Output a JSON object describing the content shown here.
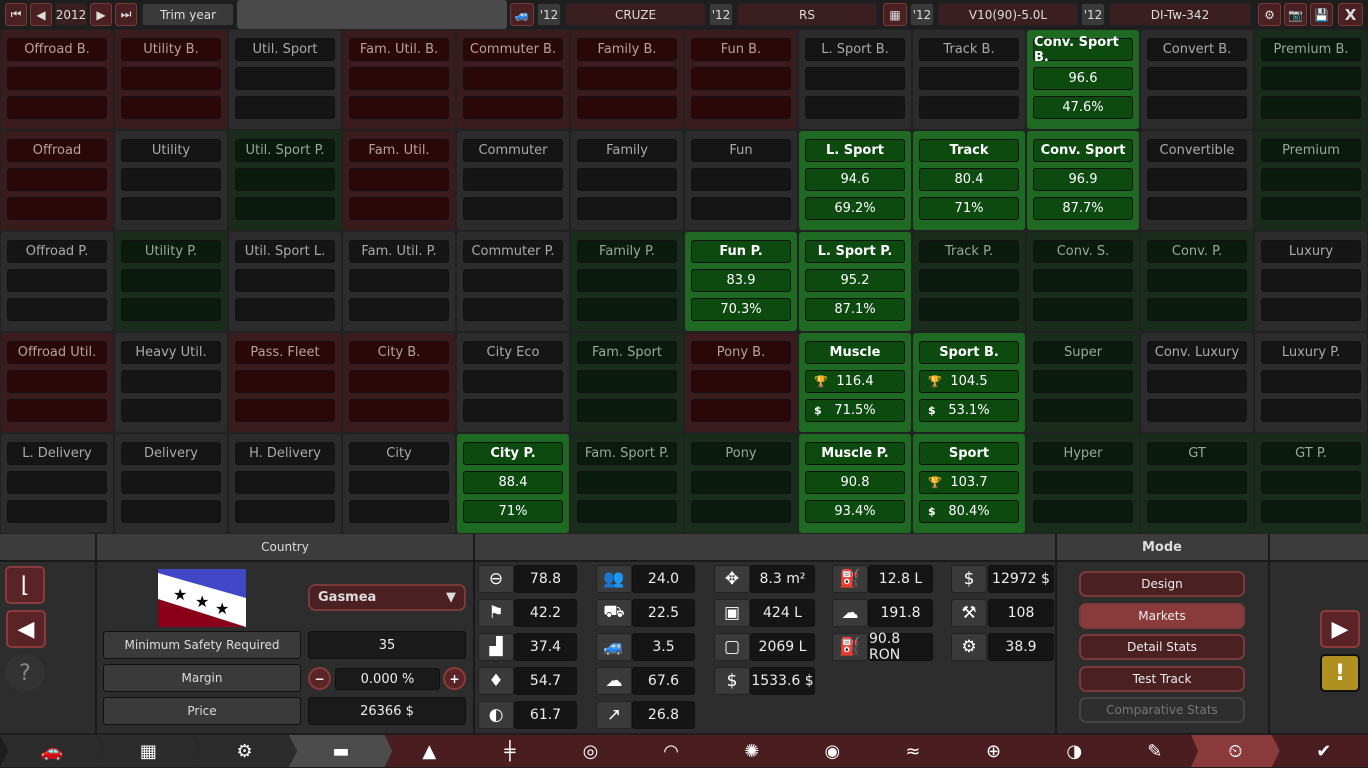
{
  "topbar": {
    "year": "2012",
    "trim_year_label": "Trim year",
    "model_year": "'12",
    "model_name": "CRUZE",
    "trim_year": "'12",
    "trim_name": "RS",
    "engine_year": "'12",
    "engine_name": "V10(90)-5.0L",
    "variant_year": "'12",
    "variant_name": "DI-Tw-342",
    "close_label": "X"
  },
  "markets": [
    [
      {
        "n": "Offroad B.",
        "c": "red"
      },
      {
        "n": "Utility B.",
        "c": "red"
      },
      {
        "n": "Util. Sport",
        "c": "gray"
      },
      {
        "n": "Fam. Util. B.",
        "c": "red"
      },
      {
        "n": "Commuter B.",
        "c": "red"
      },
      {
        "n": "Family B.",
        "c": "red"
      },
      {
        "n": "Fun B.",
        "c": "red"
      },
      {
        "n": "L. Sport B.",
        "c": "gray"
      },
      {
        "n": "Track B.",
        "c": "gray"
      },
      {
        "n": "Conv. Sport B.",
        "c": "green",
        "score": "96.6",
        "share": "47.6%"
      },
      {
        "n": "Convert B.",
        "c": "gray"
      },
      {
        "n": "Premium B.",
        "c": "dgreen"
      }
    ],
    [
      {
        "n": "Offroad",
        "c": "red"
      },
      {
        "n": "Utility",
        "c": "gray"
      },
      {
        "n": "Util. Sport P.",
        "c": "dgreen"
      },
      {
        "n": "Fam. Util.",
        "c": "red"
      },
      {
        "n": "Commuter",
        "c": "gray"
      },
      {
        "n": "Family",
        "c": "gray"
      },
      {
        "n": "Fun",
        "c": "gray"
      },
      {
        "n": "L. Sport",
        "c": "green",
        "score": "94.6",
        "share": "69.2%"
      },
      {
        "n": "Track",
        "c": "green",
        "score": "80.4",
        "share": "71%"
      },
      {
        "n": "Conv. Sport",
        "c": "green",
        "score": "96.9",
        "share": "87.7%"
      },
      {
        "n": "Convertible",
        "c": "gray"
      },
      {
        "n": "Premium",
        "c": "dgreen"
      }
    ],
    [
      {
        "n": "Offroad P.",
        "c": "gray"
      },
      {
        "n": "Utility P.",
        "c": "dgreen"
      },
      {
        "n": "Util. Sport L.",
        "c": "gray"
      },
      {
        "n": "Fam. Util. P.",
        "c": "gray"
      },
      {
        "n": "Commuter P.",
        "c": "gray"
      },
      {
        "n": "Family P.",
        "c": "dgreen"
      },
      {
        "n": "Fun P.",
        "c": "green",
        "score": "83.9",
        "share": "70.3%"
      },
      {
        "n": "L. Sport P.",
        "c": "green",
        "score": "95.2",
        "share": "87.1%"
      },
      {
        "n": "Track P.",
        "c": "dgreen"
      },
      {
        "n": "Conv. S.",
        "c": "dgreen"
      },
      {
        "n": "Conv. P.",
        "c": "dgreen"
      },
      {
        "n": "Luxury",
        "c": "gray"
      }
    ],
    [
      {
        "n": "Offroad Util.",
        "c": "red"
      },
      {
        "n": "Heavy Util.",
        "c": "gray"
      },
      {
        "n": "Pass. Fleet",
        "c": "red"
      },
      {
        "n": "City B.",
        "c": "red"
      },
      {
        "n": "City Eco",
        "c": "gray"
      },
      {
        "n": "Fam. Sport",
        "c": "dgreen"
      },
      {
        "n": "Pony B.",
        "c": "red"
      },
      {
        "n": "Muscle",
        "c": "green",
        "score": "116.4",
        "share": "71.5%",
        "best_score": true,
        "best_share": true
      },
      {
        "n": "Sport B.",
        "c": "green",
        "score": "104.5",
        "share": "53.1%",
        "best_score": true,
        "best_share": true
      },
      {
        "n": "Super",
        "c": "dgreen"
      },
      {
        "n": "Conv. Luxury",
        "c": "gray"
      },
      {
        "n": "Luxury P.",
        "c": "gray"
      }
    ],
    [
      {
        "n": "L. Delivery",
        "c": "gray"
      },
      {
        "n": "Delivery",
        "c": "gray"
      },
      {
        "n": "H. Delivery",
        "c": "gray"
      },
      {
        "n": "City",
        "c": "gray"
      },
      {
        "n": "City P.",
        "c": "green",
        "score": "88.4",
        "share": "71%"
      },
      {
        "n": "Fam. Sport P.",
        "c": "dgreen"
      },
      {
        "n": "Pony",
        "c": "dgreen"
      },
      {
        "n": "Muscle P.",
        "c": "green",
        "score": "90.8",
        "share": "93.4%"
      },
      {
        "n": "Sport",
        "c": "green",
        "score": "103.7",
        "share": "80.4%",
        "best_score": true,
        "best_share": true
      },
      {
        "n": "Hyper",
        "c": "dgreen"
      },
      {
        "n": "GT",
        "c": "dgreen"
      },
      {
        "n": "GT P.",
        "c": "dgreen"
      }
    ]
  ],
  "country": {
    "header": "Country",
    "selected": "Gasmea",
    "min_safety_label": "Minimum Safety Required",
    "min_safety": "35",
    "margin_label": "Margin",
    "margin": "0.000 %",
    "price_label": "Price",
    "price": "26366 $"
  },
  "stats": [
    [
      {
        "icon": "steering-wheel",
        "v": "78.8"
      },
      {
        "icon": "checkered-flag",
        "v": "42.2"
      },
      {
        "icon": "armchair",
        "v": "37.4"
      },
      {
        "icon": "diamond",
        "v": "54.7"
      },
      {
        "icon": "safety-circle",
        "v": "61.7"
      }
    ],
    [
      {
        "icon": "passengers",
        "v": "24.0"
      },
      {
        "icon": "utility-truck",
        "v": "22.5"
      },
      {
        "icon": "offroad-car",
        "v": "3.5"
      },
      {
        "icon": "emissions-car",
        "v": "67.6"
      },
      {
        "icon": "rising-arrow",
        "v": "26.8"
      }
    ],
    [
      {
        "icon": "arrows-move",
        "v": "8.3 m²"
      },
      {
        "icon": "cargo-box",
        "v": "424 L"
      },
      {
        "icon": "passenger-volume",
        "v": "2069 L"
      },
      {
        "icon": "service-cost",
        "v": "1533.6 $"
      }
    ],
    [
      {
        "icon": "fuel-can",
        "v": "12.8 L"
      },
      {
        "icon": "emissions-cloud",
        "v": "191.8"
      },
      {
        "icon": "fuel-pump",
        "v": "90.8 RON"
      }
    ],
    [
      {
        "icon": "cost-person",
        "v": "12972 $"
      },
      {
        "icon": "anvil",
        "v": "108"
      },
      {
        "icon": "gear-wrench",
        "v": "38.9"
      }
    ]
  ],
  "mode": {
    "header": "Mode",
    "buttons": [
      "Design",
      "Markets",
      "Detail Stats",
      "Test Track",
      "Comparative Stats"
    ],
    "active": "Markets",
    "disabled": "Comparative Stats"
  },
  "tabs": [
    "car",
    "engine-block",
    "pistons",
    "car-body",
    "car-fixtures",
    "suspension",
    "headlights",
    "brakes",
    "wheels",
    "disc",
    "aero",
    "steering",
    "handling",
    "paint",
    "test-track",
    "check"
  ],
  "colors": {
    "accent_red": "#8a3a3a",
    "green": "#1e6a22",
    "warning": "#b09020"
  }
}
